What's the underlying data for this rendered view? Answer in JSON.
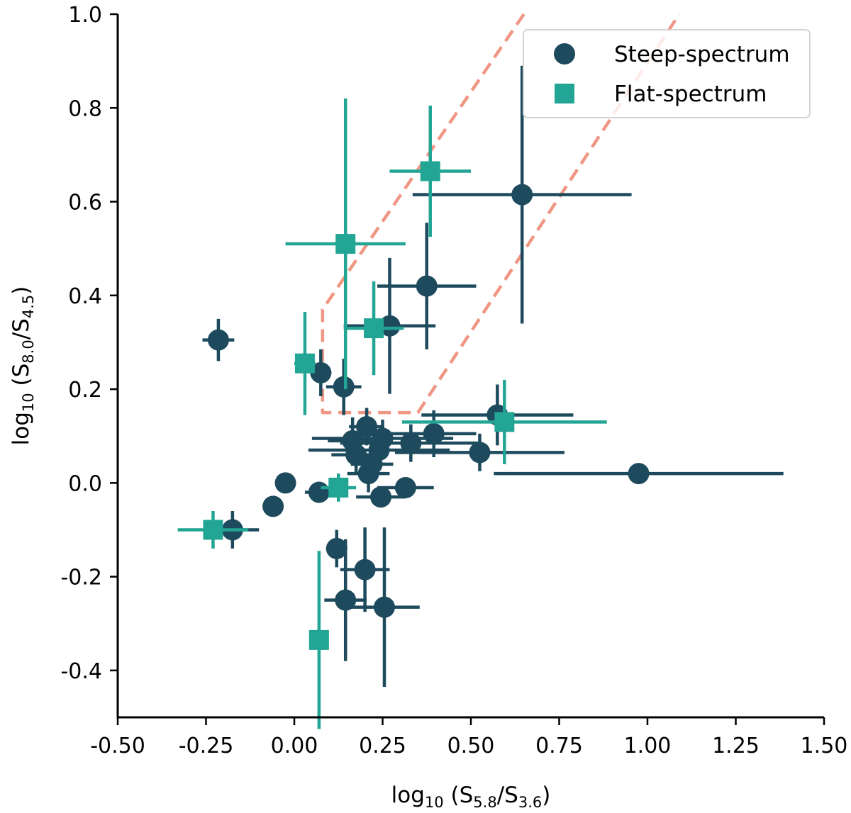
{
  "chart_data": {
    "type": "scatter",
    "title": "",
    "xlabel": "log10 (S5.8/S3.6)",
    "ylabel": "log10 (S8.0/S4.5)",
    "xlim": [
      -0.5,
      1.5
    ],
    "ylim": [
      -0.5,
      1.0
    ],
    "xticks": [
      -0.5,
      -0.25,
      0.0,
      0.25,
      0.5,
      0.75,
      1.0,
      1.25,
      1.5
    ],
    "xtick_labels": [
      "-0.50",
      "-0.25",
      "0.00",
      "0.25",
      "0.50",
      "0.75",
      "1.00",
      "1.25",
      "1.50"
    ],
    "yticks": [
      -0.4,
      -0.2,
      0.0,
      0.2,
      0.4,
      0.6,
      0.8,
      1.0
    ],
    "ytick_labels": [
      "-0.4",
      "-0.2",
      "0.0",
      "0.2",
      "0.4",
      "0.6",
      "0.8",
      "1.0"
    ],
    "grid": false,
    "legend_position": "top-right",
    "colors": {
      "steep": "#1e4a5e",
      "flat": "#22a594",
      "wedge": "#ef9784"
    },
    "wedge": [
      [
        0.65,
        1.0
      ],
      [
        0.08,
        0.37
      ],
      [
        0.08,
        0.15
      ],
      [
        0.35,
        0.15
      ],
      [
        1.09,
        1.0
      ]
    ],
    "series": [
      {
        "name": "Steep-spectrum",
        "marker": "circle",
        "points": [
          {
            "x": 0.645,
            "y": 0.615,
            "xerr": 0.31,
            "yerr": 0.275
          },
          {
            "x": 0.375,
            "y": 0.42,
            "xerr": 0.14,
            "yerr": 0.135
          },
          {
            "x": 0.27,
            "y": 0.335,
            "xerr": 0.13,
            "yerr": 0.145
          },
          {
            "x": -0.215,
            "y": 0.305,
            "xerr": 0.045,
            "yerr": 0.045
          },
          {
            "x": 0.075,
            "y": 0.235,
            "xerr": 0.03,
            "yerr": 0.05
          },
          {
            "x": 0.14,
            "y": 0.205,
            "xerr": 0.05,
            "yerr": 0.06
          },
          {
            "x": 0.575,
            "y": 0.145,
            "xerr": 0.215,
            "yerr": 0.065
          },
          {
            "x": 0.205,
            "y": 0.12,
            "xerr": 0.05,
            "yerr": 0.04
          },
          {
            "x": 0.395,
            "y": 0.105,
            "xerr": 0.12,
            "yerr": 0.05
          },
          {
            "x": 0.165,
            "y": 0.09,
            "xerr": 0.07,
            "yerr": 0.05
          },
          {
            "x": 0.25,
            "y": 0.095,
            "xerr": 0.2,
            "yerr": 0.04
          },
          {
            "x": 0.33,
            "y": 0.085,
            "xerr": 0.2,
            "yerr": 0.04
          },
          {
            "x": 0.175,
            "y": 0.06,
            "xerr": 0.07,
            "yerr": 0.04
          },
          {
            "x": 0.24,
            "y": 0.07,
            "xerr": 0.2,
            "yerr": 0.04
          },
          {
            "x": 0.525,
            "y": 0.065,
            "xerr": 0.24,
            "yerr": 0.04
          },
          {
            "x": 0.22,
            "y": 0.04,
            "xerr": 0.06,
            "yerr": 0.04
          },
          {
            "x": 0.21,
            "y": 0.02,
            "xerr": 0.06,
            "yerr": 0.04
          },
          {
            "x": 0.975,
            "y": 0.02,
            "xerr": 0.41,
            "yerr": 0.0
          },
          {
            "x": -0.025,
            "y": 0.0,
            "xerr": 0.0,
            "yerr": 0.0
          },
          {
            "x": 0.315,
            "y": -0.01,
            "xerr": 0.08,
            "yerr": 0.02
          },
          {
            "x": 0.07,
            "y": -0.02,
            "xerr": 0.04,
            "yerr": 0.02
          },
          {
            "x": 0.245,
            "y": -0.03,
            "xerr": 0.07,
            "yerr": 0.02
          },
          {
            "x": -0.06,
            "y": -0.05,
            "xerr": 0.0,
            "yerr": 0.0
          },
          {
            "x": -0.175,
            "y": -0.1,
            "xerr": 0.075,
            "yerr": 0.04
          },
          {
            "x": 0.12,
            "y": -0.14,
            "xerr": 0.03,
            "yerr": 0.04
          },
          {
            "x": 0.2,
            "y": -0.185,
            "xerr": 0.07,
            "yerr": 0.09
          },
          {
            "x": 0.145,
            "y": -0.25,
            "xerr": 0.06,
            "yerr": 0.13
          },
          {
            "x": 0.255,
            "y": -0.265,
            "xerr": 0.1,
            "yerr": 0.17
          }
        ]
      },
      {
        "name": "Flat-spectrum",
        "marker": "square",
        "points": [
          {
            "x": 0.385,
            "y": 0.665,
            "xerr": 0.115,
            "yerr": 0.14
          },
          {
            "x": 0.145,
            "y": 0.51,
            "xerr": 0.17,
            "yerr": 0.31
          },
          {
            "x": 0.225,
            "y": 0.33,
            "xerr": 0.085,
            "yerr": 0.1
          },
          {
            "x": 0.03,
            "y": 0.255,
            "xerr": 0.03,
            "yerr": 0.11
          },
          {
            "x": 0.595,
            "y": 0.13,
            "xerr": 0.29,
            "yerr": 0.09
          },
          {
            "x": 0.125,
            "y": -0.01,
            "xerr": 0.05,
            "yerr": 0.03
          },
          {
            "x": -0.23,
            "y": -0.1,
            "xerr": 0.1,
            "yerr": 0.04
          },
          {
            "x": 0.07,
            "y": -0.335,
            "xerr": 0.0,
            "yerr": 0.19
          }
        ]
      }
    ]
  }
}
